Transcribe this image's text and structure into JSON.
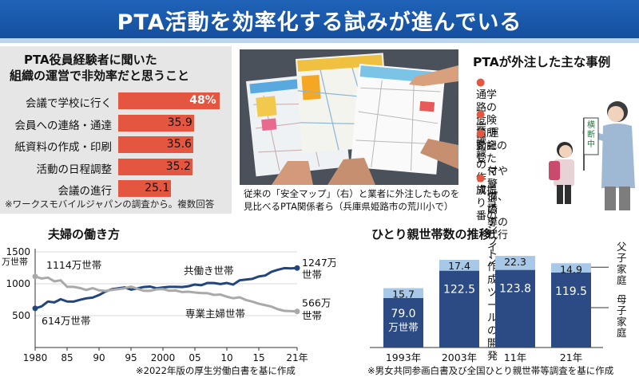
{
  "header": {
    "title": "PTA活動を効率化する試みが進んでいる"
  },
  "survey": {
    "title_line1": "PTA役員経験者に聞いた",
    "title_line2": "組織の運営で非効率だと思うこと",
    "note": "※ワークスモバイルジャパンの調査から。複数回答",
    "chart_data": {
      "type": "bar",
      "title": "PTA役員経験者に聞いた 組織の運営で非効率だと思うこと",
      "categories": [
        "会議で学校に行く",
        "会員への連絡・通達",
        "紙資料の作成・印刷",
        "活動の日程調整",
        "会議の進行"
      ],
      "values": [
        48,
        35.9,
        35.6,
        35.2,
        25.1
      ],
      "value_labels": [
        "48%",
        "35.9",
        "35.6",
        "35.2",
        "25.1"
      ],
      "unit": "%",
      "xlim": [
        0,
        50
      ],
      "bar_color": "#e4563f",
      "orientation": "horizontal"
    }
  },
  "photo": {
    "caption_line1": "従来の「安全マップ」（右）と業者に外注したものを",
    "caption_line2": "見比べるPTA関係者ら（兵庫県姫路市の荒川小で）",
    "sign_text": "横断中"
  },
  "cases": {
    "title": "PTAが外注した主な事例",
    "items": [
      [
        "通学路の危険箇所を記した",
        "マップのデザイン"
      ],
      [
        "会議録の作成"
      ],
      [
        "運動会の受",
        "付や警備、誘",
        "導の代行"
      ],
      [
        "旗振り当番の",
        "シフト作成ツ",
        "ールの開発"
      ]
    ],
    "bullet": "●",
    "bullet_color": "#e4563f"
  },
  "couples": {
    "title": "夫婦の働き方",
    "note": "※2022年版の厚生労働白書を基に作成",
    "chart_data": {
      "type": "line",
      "title": "夫婦の働き方",
      "ylabel": "万世帯",
      "y_ticks": [
        500,
        1000,
        1500
      ],
      "y_tick_labels": [
        "500",
        "1000",
        "1500"
      ],
      "x_tick_labels": [
        "1980",
        "85",
        "90",
        "95",
        "2000",
        "05",
        "10",
        "15",
        "21年"
      ],
      "x_ticks": [
        1980,
        1985,
        1990,
        1995,
        2000,
        2005,
        2010,
        2015,
        2021
      ],
      "ylim": [
        0,
        1500
      ],
      "xlim": [
        1980,
        2021
      ],
      "series": [
        {
          "name": "共働き世帯",
          "color": "#23457e",
          "x": [
            1980,
            1981,
            1982,
            1983,
            1984,
            1985,
            1986,
            1987,
            1988,
            1989,
            1990,
            1991,
            1992,
            1993,
            1994,
            1995,
            1996,
            1997,
            1998,
            1999,
            2000,
            2001,
            2002,
            2003,
            2004,
            2005,
            2006,
            2007,
            2008,
            2009,
            2010,
            2011,
            2012,
            2013,
            2014,
            2015,
            2016,
            2017,
            2018,
            2019,
            2020,
            2021
          ],
          "values": [
            614,
            645,
            721,
            708,
            758,
            722,
            720,
            748,
            771,
            783,
            823,
            877,
            914,
            929,
            943,
            908,
            927,
            949,
            956,
            929,
            942,
            951,
            951,
            949,
            961,
            988,
            977,
            1013,
            1011,
            995,
            1012,
            987,
            1054,
            1065,
            1077,
            1114,
            1129,
            1188,
            1219,
            1245,
            1240,
            1247
          ]
        },
        {
          "name": "専業主婦世帯",
          "color": "#a9a9a9",
          "x": [
            1980,
            1981,
            1982,
            1983,
            1984,
            1985,
            1986,
            1987,
            1988,
            1989,
            1990,
            1991,
            1992,
            1993,
            1994,
            1995,
            1996,
            1997,
            1998,
            1999,
            2000,
            2001,
            2002,
            2003,
            2004,
            2005,
            2006,
            2007,
            2008,
            2009,
            2010,
            2011,
            2012,
            2013,
            2014,
            2015,
            2016,
            2017,
            2018,
            2019,
            2020,
            2021
          ],
          "values": [
            1114,
            1082,
            1096,
            1038,
            1054,
            952,
            952,
            933,
            903,
            930,
            897,
            888,
            903,
            915,
            930,
            955,
            921,
            889,
            889,
            912,
            916,
            890,
            894,
            870,
            875,
            863,
            854,
            851,
            825,
            831,
            797,
            773,
            787,
            745,
            720,
            687,
            664,
            641,
            600,
            575,
            571,
            566
          ]
        }
      ],
      "annotations": {
        "start_housewife": "1114万世帯",
        "start_dual": "614万世帯",
        "end_dual_value": "1247万",
        "end_dual_unit": "世帯",
        "end_housewife_value": "566万",
        "end_housewife_unit": "世帯",
        "label_dual": "共働き世帯",
        "label_housewife": "専業主婦世帯"
      }
    }
  },
  "single_parent": {
    "title": "ひとり親世帯数の推移",
    "note": "※男女共同参画白書及び全国ひとり親世帯等調査を基に作成",
    "chart_data": {
      "type": "bar",
      "stacked": true,
      "title": "ひとり親世帯数の推移",
      "categories": [
        "1993年",
        "2003年",
        "11年",
        "21年"
      ],
      "series": [
        {
          "name": "母子家庭",
          "values": [
            79.0,
            122.5,
            123.8,
            119.5
          ],
          "labels": [
            "79.0",
            "122.5",
            "123.8",
            "119.5"
          ],
          "color": "#2c4b85"
        },
        {
          "name": "父子家庭",
          "values": [
            15.7,
            17.4,
            22.3,
            14.9
          ],
          "labels": [
            "15.7",
            "17.4",
            "22.3",
            "14.9"
          ],
          "color": "#a8c8e8"
        }
      ],
      "first_bar_unit": "万世帯",
      "ylim": [
        0,
        150
      ]
    }
  }
}
